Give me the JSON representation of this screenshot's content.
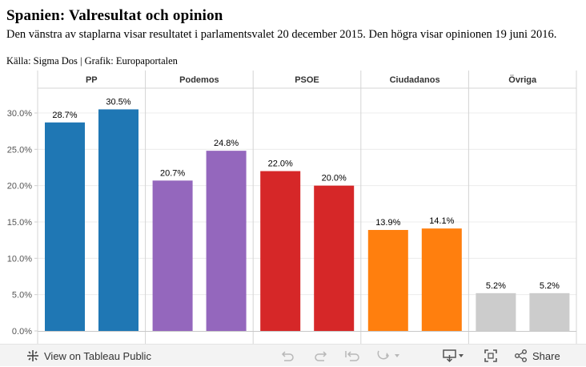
{
  "title": "Spanien: Valresultat och opinion",
  "subtitle": "Den vänstra av staplarna visar resultatet i parlamentsvalet 20 december 2015. Den högra visar opinionen 19 juni 2016.",
  "source": "Källa: Sigma Dos | Grafik: Europaportalen",
  "chart_data": {
    "type": "bar",
    "title": "Spanien: Valresultat och opinion",
    "categories": [
      "PP",
      "Podemos",
      "PSOE",
      "Ciudadanos",
      "Övriga"
    ],
    "series": [
      {
        "name": "Parlamentsvalet 20 december 2015",
        "values": [
          28.7,
          20.7,
          22.0,
          13.9,
          5.2
        ]
      },
      {
        "name": "Opinionen 19 juni 2016",
        "values": [
          30.5,
          24.8,
          20.0,
          14.1,
          5.2
        ]
      }
    ],
    "labels": [
      [
        "28.7%",
        "30.5%"
      ],
      [
        "20.7%",
        "24.8%"
      ],
      [
        "22.0%",
        "20.0%"
      ],
      [
        "13.9%",
        "14.1%"
      ],
      [
        "5.2%",
        "5.2%"
      ]
    ],
    "colors": [
      "#1f77b4",
      "#9467bd",
      "#d62728",
      "#ff7f0e",
      "#cccccc"
    ],
    "ylim": [
      0,
      33
    ],
    "yticks": [
      0,
      5,
      10,
      15,
      20,
      25,
      30
    ],
    "ytick_labels": [
      "0.0%",
      "5.0%",
      "10.0%",
      "15.0%",
      "20.0%",
      "25.0%",
      "30.0%"
    ],
    "xlabel": "",
    "ylabel": ""
  },
  "toolbar": {
    "view_label": "View on Tableau Public",
    "share_label": "Share",
    "icons": [
      "tableau-logo-icon",
      "undo-icon",
      "redo-icon",
      "revert-icon",
      "pause-icon",
      "download-icon",
      "fullscreen-icon",
      "share-icon"
    ]
  }
}
